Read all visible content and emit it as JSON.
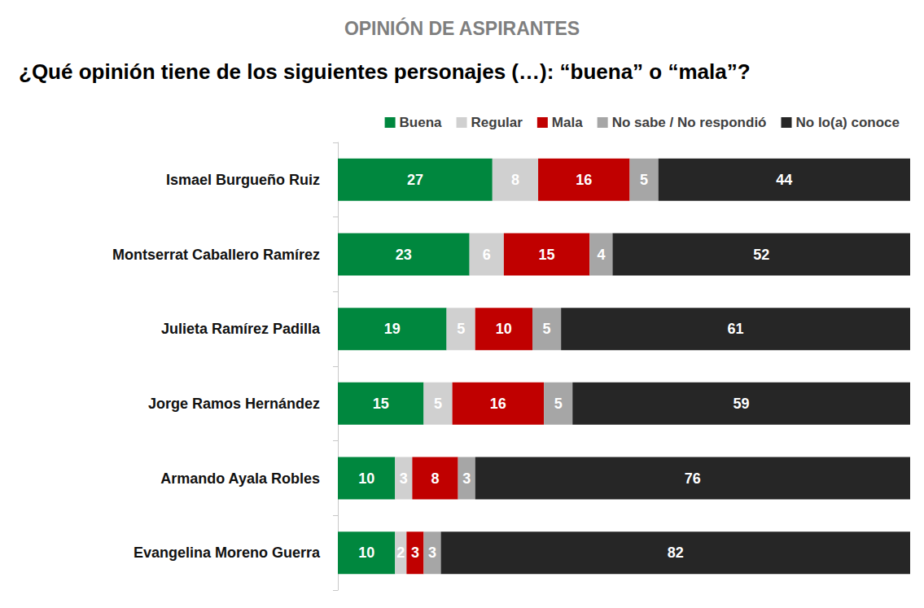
{
  "chart_data": {
    "type": "bar",
    "orientation": "horizontal",
    "stacked": true,
    "data_labels": true,
    "tick_labels": "y",
    "grid": false,
    "legend": "top-right",
    "subtitle": "OPINIÓN DE ASPIRANTES",
    "title": "¿Qué opinión tiene de los siguientes personajes (…): “buena” o “mala”?",
    "categories": [
      "Ismael Burgueño Ruiz",
      "Montserrat Caballero Ramírez",
      "Julieta Ramírez Padilla",
      "Jorge Ramos Hernández",
      "Armando Ayala Robles",
      "Evangelina Moreno Guerra"
    ],
    "xlim": [
      0,
      100
    ],
    "xticks": [
      0,
      100
    ],
    "series": [
      {
        "name": "Buena",
        "color": "#00873e",
        "values": [
          27,
          23,
          19,
          15,
          10,
          10
        ]
      },
      {
        "name": "Regular",
        "color": "#d0d0d0",
        "values": [
          8,
          6,
          5,
          5,
          3,
          2
        ]
      },
      {
        "name": "Mala",
        "color": "#c00000",
        "values": [
          16,
          15,
          10,
          16,
          8,
          3
        ]
      },
      {
        "name": "No sabe / No respondió",
        "color": "#a6a6a6",
        "values": [
          5,
          4,
          5,
          5,
          3,
          3
        ]
      },
      {
        "name": "No lo(a) conoce",
        "color": "#262626",
        "values": [
          44,
          52,
          61,
          59,
          76,
          82
        ]
      }
    ]
  }
}
